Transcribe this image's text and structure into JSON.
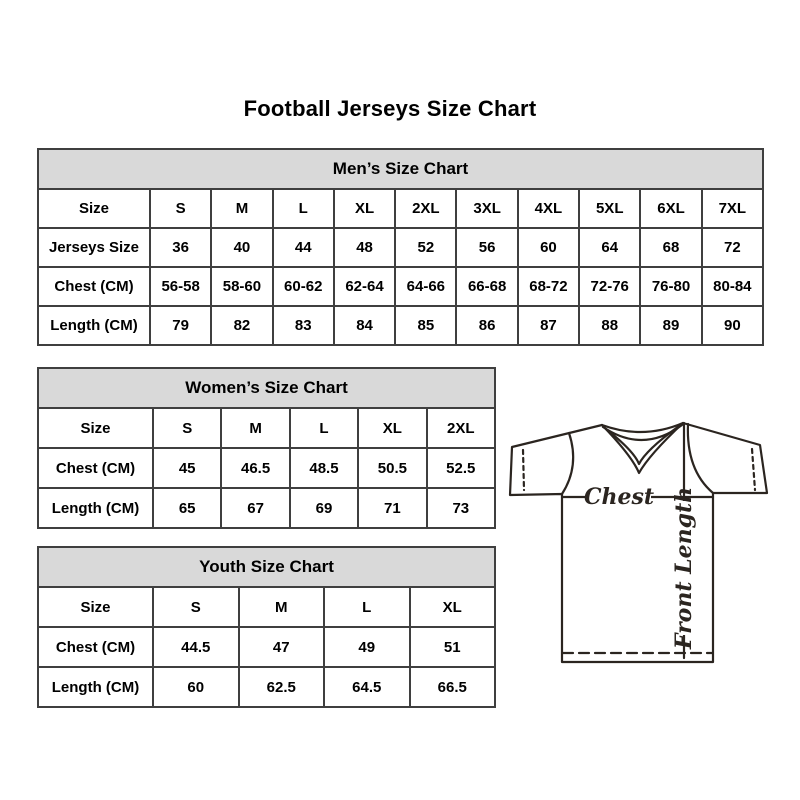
{
  "page": {
    "title": "Football Jerseys Size Chart"
  },
  "colors": {
    "table_header_bg": "#d9d9d9",
    "table_border": "#3f3f3f",
    "text": "#000000",
    "diagram_stroke": "#2b2520"
  },
  "tables": {
    "men": {
      "title": "Men’s Size Chart",
      "rows": [
        {
          "label": "Size",
          "values": [
            "S",
            "M",
            "L",
            "XL",
            "2XL",
            "3XL",
            "4XL",
            "5XL",
            "6XL",
            "7XL"
          ]
        },
        {
          "label": "Jerseys Size",
          "values": [
            "36",
            "40",
            "44",
            "48",
            "52",
            "56",
            "60",
            "64",
            "68",
            "72"
          ]
        },
        {
          "label": "Chest (CM)",
          "values": [
            "56-58",
            "58-60",
            "60-62",
            "62-64",
            "64-66",
            "66-68",
            "68-72",
            "72-76",
            "76-80",
            "80-84"
          ]
        },
        {
          "label": "Length (CM)",
          "values": [
            "79",
            "82",
            "83",
            "84",
            "85",
            "86",
            "87",
            "88",
            "89",
            "90"
          ]
        }
      ]
    },
    "women": {
      "title": "Women’s Size Chart",
      "rows": [
        {
          "label": "Size",
          "values": [
            "S",
            "M",
            "L",
            "XL",
            "2XL"
          ]
        },
        {
          "label": "Chest (CM)",
          "values": [
            "45",
            "46.5",
            "48.5",
            "50.5",
            "52.5"
          ]
        },
        {
          "label": "Length (CM)",
          "values": [
            "65",
            "67",
            "69",
            "71",
            "73"
          ]
        }
      ]
    },
    "youth": {
      "title": "Youth Size Chart",
      "rows": [
        {
          "label": "Size",
          "values": [
            "S",
            "M",
            "L",
            "XL"
          ]
        },
        {
          "label": "Chest (CM)",
          "values": [
            "44.5",
            "47",
            "49",
            "51"
          ]
        },
        {
          "label": "Length (CM)",
          "values": [
            "60",
            "62.5",
            "64.5",
            "66.5"
          ]
        }
      ]
    }
  },
  "diagram": {
    "chest_label": "Chest",
    "front_length_label": "Front Length"
  }
}
